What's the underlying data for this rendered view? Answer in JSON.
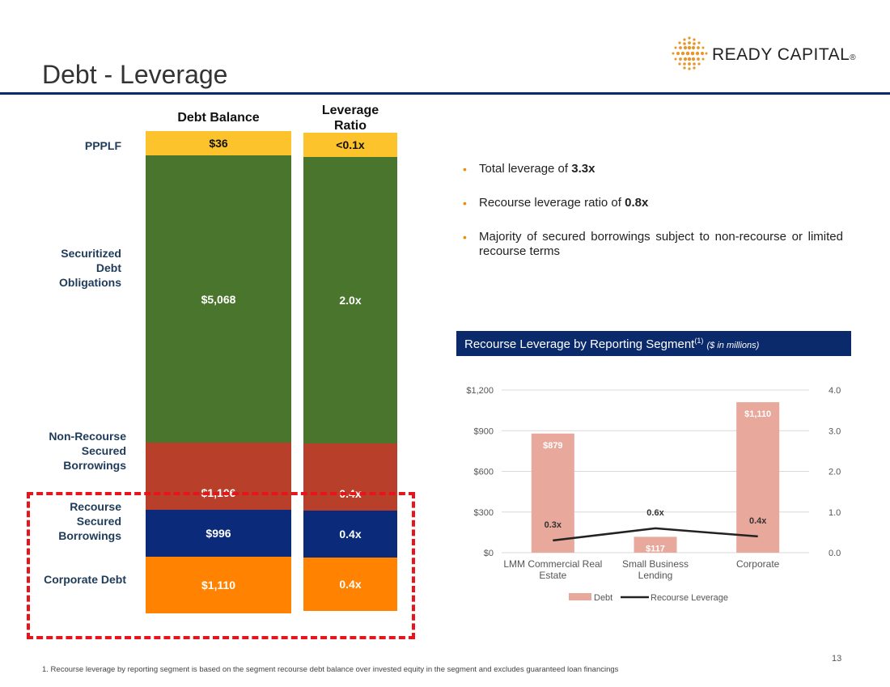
{
  "title": "Debt - Leverage",
  "logo": {
    "text": "READY CAPITAL",
    "mark": "®"
  },
  "columns": {
    "debt_balance": "Debt Balance",
    "leverage_ratio": "Leverage Ratio"
  },
  "stack": [
    {
      "label": "PPPLF",
      "balance": "$36",
      "ratio": "<0.1x",
      "color": "#fcc32c"
    },
    {
      "label": "Securitized Debt Obligations",
      "balance": "$5,068",
      "ratio": "2.0x",
      "color": "#4a752c"
    },
    {
      "label": "Non-Recourse Secured Borrowings",
      "balance": "$1,106",
      "ratio": "0.4x",
      "color": "#b8402a"
    },
    {
      "label": "Recourse Secured Borrowings",
      "balance": "$996",
      "ratio": "0.4x",
      "color": "#0b2a7a"
    },
    {
      "label": "Corporate Debt",
      "balance": "$1,110",
      "ratio": "0.4x",
      "color": "#ff8200"
    }
  ],
  "bullets": [
    {
      "text": "Total leverage of ",
      "bold": "3.3x"
    },
    {
      "text": "Recourse leverage ratio of ",
      "bold": "0.8x"
    },
    {
      "text": "Majority of secured borrowings subject to non-recourse or limited recourse terms",
      "bold": ""
    }
  ],
  "chart_banner": {
    "title": "Recourse Leverage by Reporting Segment",
    "sup": "(1)",
    "units": "($ in millions)"
  },
  "chart_data": {
    "type": "bar",
    "categories": [
      "LMM Commercial Real Estate",
      "Small Business Lending",
      "Corporate"
    ],
    "series": [
      {
        "name": "Debt",
        "type": "bar",
        "axis": "left",
        "values": [
          879,
          117,
          1110
        ],
        "labels": [
          "$879",
          "$117",
          "$1,110"
        ],
        "color": "#e8a89b"
      },
      {
        "name": "Recourse Leverage",
        "type": "line",
        "axis": "right",
        "values": [
          0.3,
          0.6,
          0.4
        ],
        "labels": [
          "0.3x",
          "0.6x",
          "0.4x"
        ],
        "color": "#222222"
      }
    ],
    "ylim": [
      0,
      1200
    ],
    "yticks": [
      "$0",
      "$300",
      "$600",
      "$900",
      "$1,200"
    ],
    "y2lim": [
      0,
      4
    ],
    "y2ticks": [
      "0.0",
      "1.0",
      "2.0",
      "3.0",
      "4.0"
    ],
    "legend": [
      "Debt",
      "Recourse Leverage"
    ],
    "legend_position": "bottom"
  },
  "page_number": "13",
  "footnote": "1. Recourse leverage by reporting segment is based on the segment recourse debt balance over invested equity in the segment and excludes guaranteed loan financings"
}
